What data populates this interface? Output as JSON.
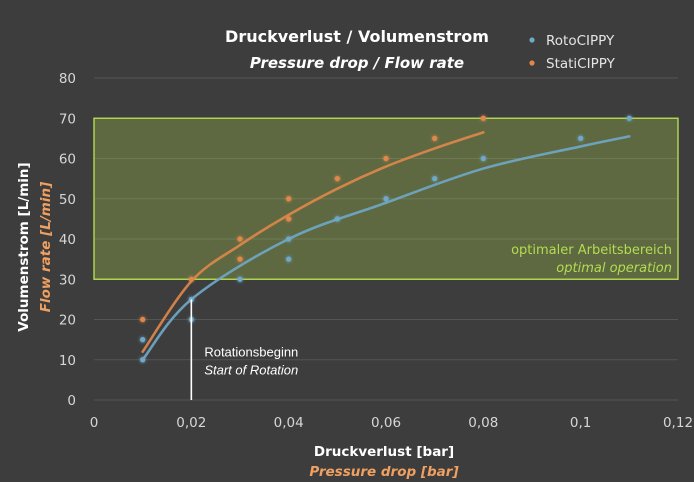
{
  "chart_data": {
    "type": "scatter",
    "title": "Druckverlust / Volumenstrom",
    "subtitle": "Pressure drop / Flow rate",
    "xlabel": "Druckverlust [bar]",
    "xlabel_sub": "Pressure drop [bar]",
    "ylabel": "Volumenstrom [L/min]",
    "ylabel_sub": "Flow rate [L/min]",
    "xlim": [
      0,
      0.12
    ],
    "ylim": [
      0,
      80
    ],
    "x_ticks": [
      0,
      0.02,
      0.04,
      0.06,
      0.08,
      0.1,
      0.12
    ],
    "x_tick_labels": [
      "0",
      "0,02",
      "0,04",
      "0,06",
      "0,08",
      "0,1",
      "0,12"
    ],
    "y_ticks": [
      0,
      10,
      20,
      30,
      40,
      50,
      60,
      70,
      80
    ],
    "y_tick_labels": [
      "0",
      "10",
      "20",
      "30",
      "40",
      "50",
      "60",
      "70",
      "80"
    ],
    "grid": "horizontal",
    "legend_position": "top-right",
    "background": "#3d3d3d",
    "series": [
      {
        "name": "RotoCIPPY",
        "color": "#6fa8c8",
        "points": [
          [
            0.01,
            10
          ],
          [
            0.01,
            15
          ],
          [
            0.02,
            20
          ],
          [
            0.02,
            25
          ],
          [
            0.03,
            30
          ],
          [
            0.04,
            35
          ],
          [
            0.04,
            40
          ],
          [
            0.05,
            45
          ],
          [
            0.06,
            50
          ],
          [
            0.07,
            55
          ],
          [
            0.08,
            60
          ],
          [
            0.1,
            65
          ],
          [
            0.11,
            70
          ]
        ],
        "trendline": [
          [
            0.01,
            10
          ],
          [
            0.02,
            25
          ],
          [
            0.04,
            40
          ],
          [
            0.06,
            49
          ],
          [
            0.08,
            57.5
          ],
          [
            0.1,
            63
          ],
          [
            0.11,
            65.5
          ]
        ]
      },
      {
        "name": "StatiCIPPY",
        "color": "#e0874a",
        "points": [
          [
            0.01,
            20
          ],
          [
            0.02,
            30
          ],
          [
            0.03,
            35
          ],
          [
            0.03,
            40
          ],
          [
            0.04,
            45
          ],
          [
            0.04,
            50
          ],
          [
            0.05,
            55
          ],
          [
            0.06,
            60
          ],
          [
            0.07,
            65
          ],
          [
            0.08,
            70
          ]
        ],
        "trendline": [
          [
            0.01,
            12
          ],
          [
            0.02,
            29.5
          ],
          [
            0.03,
            38.5
          ],
          [
            0.04,
            46
          ],
          [
            0.05,
            52.5
          ],
          [
            0.06,
            58
          ],
          [
            0.07,
            62.5
          ],
          [
            0.08,
            66.5
          ]
        ]
      }
    ],
    "annotations": {
      "zone": {
        "y_range": [
          30,
          70
        ],
        "x_range": [
          0,
          0.12
        ],
        "label_de": "optimaler Arbeitsbereich",
        "label_en": "optimal operation",
        "color": "#b4dc50"
      },
      "marker": {
        "x": 0.02,
        "y_range": [
          0,
          25
        ],
        "label_de": "Rotationsbeginn",
        "label_en": "Start of Rotation"
      }
    }
  }
}
